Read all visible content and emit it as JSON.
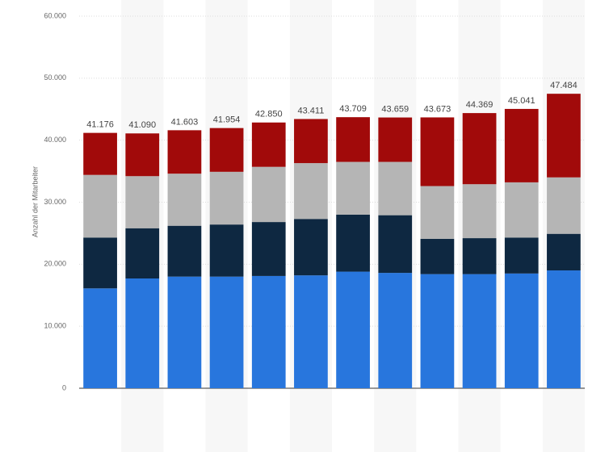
{
  "chart_data": {
    "type": "stacked_bar",
    "y_label": "Anzahl der Mitarbeiter",
    "categories": [
      null,
      null,
      null,
      null,
      null,
      null,
      null,
      null,
      null,
      null,
      null,
      null
    ],
    "series": [
      {
        "color": "#2876dd",
        "values": [
          16100,
          17700,
          18000,
          18000,
          18100,
          18200,
          18800,
          18600,
          18400,
          18400,
          18500,
          19000
        ]
      },
      {
        "color": "#0e2841",
        "values": [
          8200,
          8100,
          8200,
          8400,
          8700,
          9100,
          9200,
          9300,
          5700,
          5800,
          5800,
          5900
        ]
      },
      {
        "color": "#b5b5b5",
        "values": [
          10100,
          8400,
          8400,
          8500,
          8900,
          9000,
          8500,
          8600,
          8500,
          8700,
          8900,
          9100
        ]
      },
      {
        "color": "#a10a0a",
        "values": [
          6776,
          6890,
          7003,
          7054,
          7150,
          7111,
          7209,
          7159,
          11073,
          11469,
          11841,
          13484
        ]
      }
    ],
    "totals": {
      "values": [
        41176,
        41090,
        41603,
        41954,
        42850,
        43411,
        43709,
        43659,
        43673,
        44369,
        45041,
        47484
      ],
      "value_labels": [
        "41.176",
        "41.090",
        "41.603",
        "41.954",
        "42.850",
        "43.411",
        "43.709",
        "43.659",
        "43.673",
        "44.369",
        "45.041",
        "47.484"
      ]
    },
    "ylim": [
      0,
      60000
    ],
    "yticks": [
      0,
      {
        "value": 10000,
        "label": "10.000"
      },
      {
        "value": 20000,
        "label": "20.000"
      },
      {
        "value": 30000,
        "label": "30.000"
      },
      {
        "value": 40000,
        "label": "40.000"
      },
      {
        "value": 50000,
        "label": "50.000"
      },
      {
        "value": 60000,
        "label": "60.000"
      }
    ],
    "grid": true
  }
}
